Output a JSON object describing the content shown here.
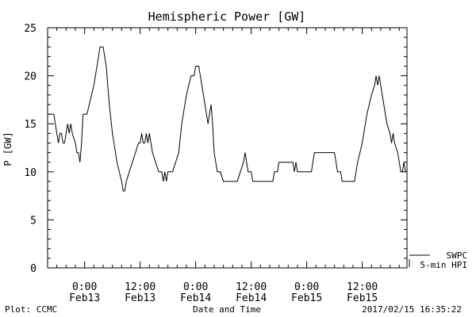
{
  "chart_data": {
    "type": "line",
    "title": "Hemispheric Power [GW]",
    "ylabel": "P [GW]",
    "xlabel": "Date and Time",
    "ylim": [
      0,
      25
    ],
    "yticks": [
      0,
      5,
      10,
      15,
      20,
      25
    ],
    "xlim": [
      "2017-02-12 16:00",
      "2017-02-15 21:40"
    ],
    "xticks": [
      {
        "t": "2017-02-13 00:00",
        "time": "0:00",
        "date": "Feb13"
      },
      {
        "t": "2017-02-13 12:00",
        "time": "12:00",
        "date": "Feb13"
      },
      {
        "t": "2017-02-14 00:00",
        "time": "0:00",
        "date": "Feb14"
      },
      {
        "t": "2017-02-14 12:00",
        "time": "12:00",
        "date": "Feb14"
      },
      {
        "t": "2017-02-15 00:00",
        "time": "0:00",
        "date": "Feb15"
      },
      {
        "t": "2017-02-15 12:00",
        "time": "12:00",
        "date": "Feb15"
      }
    ],
    "grid": false,
    "series": [
      {
        "name": "5-min HPI",
        "color": "#000000",
        "points": [
          [
            "2017-02-12 16:00",
            16
          ],
          [
            "2017-02-12 17:20",
            16
          ],
          [
            "2017-02-12 17:40",
            15
          ],
          [
            "2017-02-12 18:20",
            13
          ],
          [
            "2017-02-12 18:40",
            14
          ],
          [
            "2017-02-12 19:00",
            14
          ],
          [
            "2017-02-12 19:20",
            13
          ],
          [
            "2017-02-12 19:40",
            13
          ],
          [
            "2017-02-12 20:00",
            14
          ],
          [
            "2017-02-12 20:20",
            15
          ],
          [
            "2017-02-12 20:40",
            14
          ],
          [
            "2017-02-12 21:00",
            15
          ],
          [
            "2017-02-12 21:20",
            14
          ],
          [
            "2017-02-12 22:00",
            13
          ],
          [
            "2017-02-12 22:20",
            12
          ],
          [
            "2017-02-12 22:40",
            12
          ],
          [
            "2017-02-12 23:00",
            11
          ],
          [
            "2017-02-12 23:20",
            13
          ],
          [
            "2017-02-12 23:40",
            16
          ],
          [
            "2017-02-13 00:30",
            16
          ],
          [
            "2017-02-13 01:30",
            18
          ],
          [
            "2017-02-13 02:00",
            19
          ],
          [
            "2017-02-13 03:00",
            22
          ],
          [
            "2017-02-13 03:20",
            23
          ],
          [
            "2017-02-13 04:00",
            23
          ],
          [
            "2017-02-13 04:40",
            21
          ],
          [
            "2017-02-13 05:20",
            17
          ],
          [
            "2017-02-13 06:00",
            14
          ],
          [
            "2017-02-13 07:00",
            11
          ],
          [
            "2017-02-13 08:00",
            9
          ],
          [
            "2017-02-13 08:20",
            8
          ],
          [
            "2017-02-13 08:40",
            8
          ],
          [
            "2017-02-13 09:00",
            9
          ],
          [
            "2017-02-13 09:40",
            10
          ],
          [
            "2017-02-13 10:20",
            11
          ],
          [
            "2017-02-13 11:00",
            12
          ],
          [
            "2017-02-13 11:40",
            13
          ],
          [
            "2017-02-13 12:00",
            13
          ],
          [
            "2017-02-13 12:20",
            14
          ],
          [
            "2017-02-13 12:40",
            13
          ],
          [
            "2017-02-13 13:00",
            13
          ],
          [
            "2017-02-13 13:20",
            14
          ],
          [
            "2017-02-13 13:40",
            13
          ],
          [
            "2017-02-13 14:00",
            14
          ],
          [
            "2017-02-13 14:40",
            12
          ],
          [
            "2017-02-13 15:20",
            11
          ],
          [
            "2017-02-13 16:00",
            10
          ],
          [
            "2017-02-13 16:40",
            10
          ],
          [
            "2017-02-13 17:00",
            9
          ],
          [
            "2017-02-13 17:20",
            10
          ],
          [
            "2017-02-13 17:40",
            9
          ],
          [
            "2017-02-13 18:00",
            10
          ],
          [
            "2017-02-13 19:00",
            10
          ],
          [
            "2017-02-13 19:40",
            11
          ],
          [
            "2017-02-13 20:20",
            12
          ],
          [
            "2017-02-13 21:00",
            15
          ],
          [
            "2017-02-13 22:00",
            18
          ],
          [
            "2017-02-13 23:00",
            20
          ],
          [
            "2017-02-13 23:40",
            20
          ],
          [
            "2017-02-14 00:00",
            21
          ],
          [
            "2017-02-14 00:40",
            21
          ],
          [
            "2017-02-14 01:00",
            20
          ],
          [
            "2017-02-14 01:40",
            18
          ],
          [
            "2017-02-14 02:20",
            16
          ],
          [
            "2017-02-14 02:40",
            15
          ],
          [
            "2017-02-14 03:00",
            16
          ],
          [
            "2017-02-14 03:20",
            17
          ],
          [
            "2017-02-14 03:40",
            15
          ],
          [
            "2017-02-14 04:00",
            12
          ],
          [
            "2017-02-14 04:40",
            10
          ],
          [
            "2017-02-14 05:20",
            10
          ],
          [
            "2017-02-14 06:00",
            9
          ],
          [
            "2017-02-14 09:00",
            9
          ],
          [
            "2017-02-14 09:40",
            10
          ],
          [
            "2017-02-14 10:20",
            11
          ],
          [
            "2017-02-14 10:40",
            12
          ],
          [
            "2017-02-14 11:00",
            11
          ],
          [
            "2017-02-14 11:20",
            10
          ],
          [
            "2017-02-14 12:00",
            10
          ],
          [
            "2017-02-14 12:20",
            9
          ],
          [
            "2017-02-14 16:40",
            9
          ],
          [
            "2017-02-14 17:00",
            10
          ],
          [
            "2017-02-14 17:40",
            10
          ],
          [
            "2017-02-14 18:00",
            11
          ],
          [
            "2017-02-14 21:00",
            11
          ],
          [
            "2017-02-14 21:20",
            10
          ],
          [
            "2017-02-14 21:40",
            11
          ],
          [
            "2017-02-14 22:00",
            10
          ],
          [
            "2017-02-15 01:00",
            10
          ],
          [
            "2017-02-15 01:20",
            11
          ],
          [
            "2017-02-15 01:40",
            12
          ],
          [
            "2017-02-15 06:00",
            12
          ],
          [
            "2017-02-15 06:20",
            11
          ],
          [
            "2017-02-15 06:40",
            10
          ],
          [
            "2017-02-15 07:20",
            10
          ],
          [
            "2017-02-15 07:40",
            9
          ],
          [
            "2017-02-15 10:20",
            9
          ],
          [
            "2017-02-15 10:40",
            10
          ],
          [
            "2017-02-15 11:00",
            11
          ],
          [
            "2017-02-15 12:00",
            13
          ],
          [
            "2017-02-15 13:00",
            16
          ],
          [
            "2017-02-15 14:00",
            18
          ],
          [
            "2017-02-15 14:40",
            19
          ],
          [
            "2017-02-15 15:00",
            20
          ],
          [
            "2017-02-15 15:20",
            19
          ],
          [
            "2017-02-15 15:40",
            20
          ],
          [
            "2017-02-15 16:00",
            19
          ],
          [
            "2017-02-15 16:40",
            17
          ],
          [
            "2017-02-15 17:20",
            15
          ],
          [
            "2017-02-15 18:00",
            14
          ],
          [
            "2017-02-15 18:20",
            13
          ],
          [
            "2017-02-15 18:40",
            14
          ],
          [
            "2017-02-15 19:00",
            13
          ],
          [
            "2017-02-15 19:40",
            12
          ],
          [
            "2017-02-15 20:00",
            11
          ],
          [
            "2017-02-15 20:20",
            10
          ],
          [
            "2017-02-15 20:40",
            10
          ],
          [
            "2017-02-15 21:00",
            11
          ],
          [
            "2017-02-15 21:20",
            10
          ],
          [
            "2017-02-15 21:40",
            10
          ]
        ]
      }
    ],
    "legend": [
      {
        "label": "SWPC"
      },
      {
        "label": "5-min HPI"
      }
    ]
  },
  "footer": {
    "left": "Plot: CCMC",
    "center": "Date and Time",
    "right": "2017/02/15 16:35:22"
  }
}
